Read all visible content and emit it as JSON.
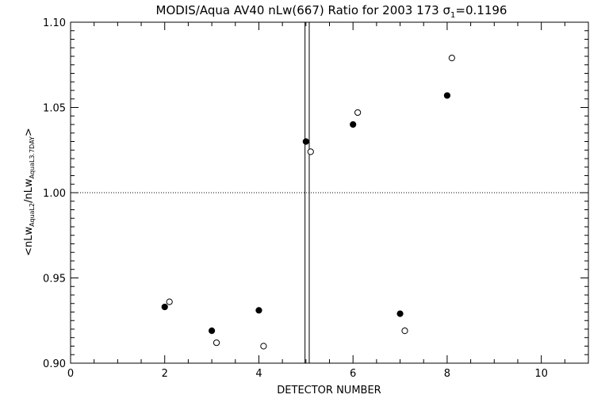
{
  "chart_data": {
    "type": "scatter",
    "title": "MODIS/Aqua AV40 nLw(667) Ratio for 2003 173 σ₁=0.1196",
    "title_parts": {
      "main": "MODIS/Aqua AV40 nLw(667) Ratio for 2003 173 ",
      "sigma": "σ",
      "sigma_sub": "1",
      "sigma_value": "=0.1196"
    },
    "xlabel": "DETECTOR NUMBER",
    "ylabel": "<nLw_AquaL2/nLw_AquaL3.7DAY>",
    "ylabel_parts": {
      "open": "<nLw",
      "sub1": "AquaL2",
      "mid": "/nLw",
      "sub2": "AquaL3.7DAY",
      "close": ">"
    },
    "xlim": [
      0,
      11
    ],
    "ylim": [
      0.9,
      1.1
    ],
    "xticks": [
      0,
      2,
      4,
      6,
      8,
      10
    ],
    "xtick_labels": [
      "0",
      "2",
      "4",
      "6",
      "8",
      "10"
    ],
    "yticks": [
      0.9,
      0.95,
      1.0,
      1.05,
      1.1
    ],
    "ytick_labels": [
      "0.90",
      "0.95",
      "1.00",
      "1.05",
      "1.10"
    ],
    "reference_line_y": 1.0,
    "vertical_lines_x": [
      4.98,
      5.07
    ],
    "series": [
      {
        "marker": "filled-circle",
        "x": [
          2,
          3,
          4,
          5,
          6,
          7,
          8
        ],
        "y": [
          0.933,
          0.919,
          0.931,
          1.03,
          1.04,
          0.929,
          1.057
        ]
      },
      {
        "marker": "open-circle",
        "x": [
          2.1,
          3.1,
          4.1,
          5.1,
          6.1,
          7.1,
          8.1
        ],
        "y": [
          0.936,
          0.912,
          0.91,
          1.024,
          1.047,
          0.919,
          1.079
        ]
      }
    ],
    "grid": false
  }
}
